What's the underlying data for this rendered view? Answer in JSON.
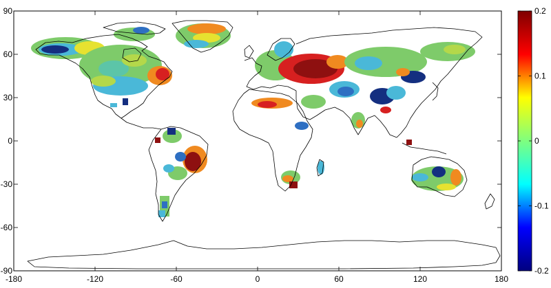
{
  "axes": {
    "x_ticks": [
      "-180",
      "-120",
      "-60",
      "0",
      "60",
      "120",
      "180"
    ],
    "y_ticks": [
      "90",
      "60",
      "30",
      "0",
      "-30",
      "-60",
      "-90"
    ],
    "x_range": [
      -180,
      180
    ],
    "y_range": [
      -90,
      90
    ]
  },
  "colorbar": {
    "ticks": [
      "0.2",
      "0.1",
      "0",
      "-0.1",
      "-0.2"
    ],
    "range": [
      -0.2,
      0.2
    ],
    "colors": [
      "#7f0000",
      "#ff0000",
      "#ffff00",
      "#7fff7f",
      "#00ffff",
      "#0000ff",
      "#00007f"
    ]
  },
  "map_colors": {
    "background": "#ffffff",
    "coastline": "#000000",
    "frame": "#000000"
  },
  "field_colors": {
    "dark_red": "#8e1010",
    "red": "#d72020",
    "orange": "#f08a20",
    "yellow": "#e6e230",
    "yellow_green": "#b4d84a",
    "green": "#7ecb6a",
    "cyan_green": "#5cc5a8",
    "cyan": "#4ab8d8",
    "blue": "#2e6fc2",
    "dark_blue": "#142f80"
  }
}
